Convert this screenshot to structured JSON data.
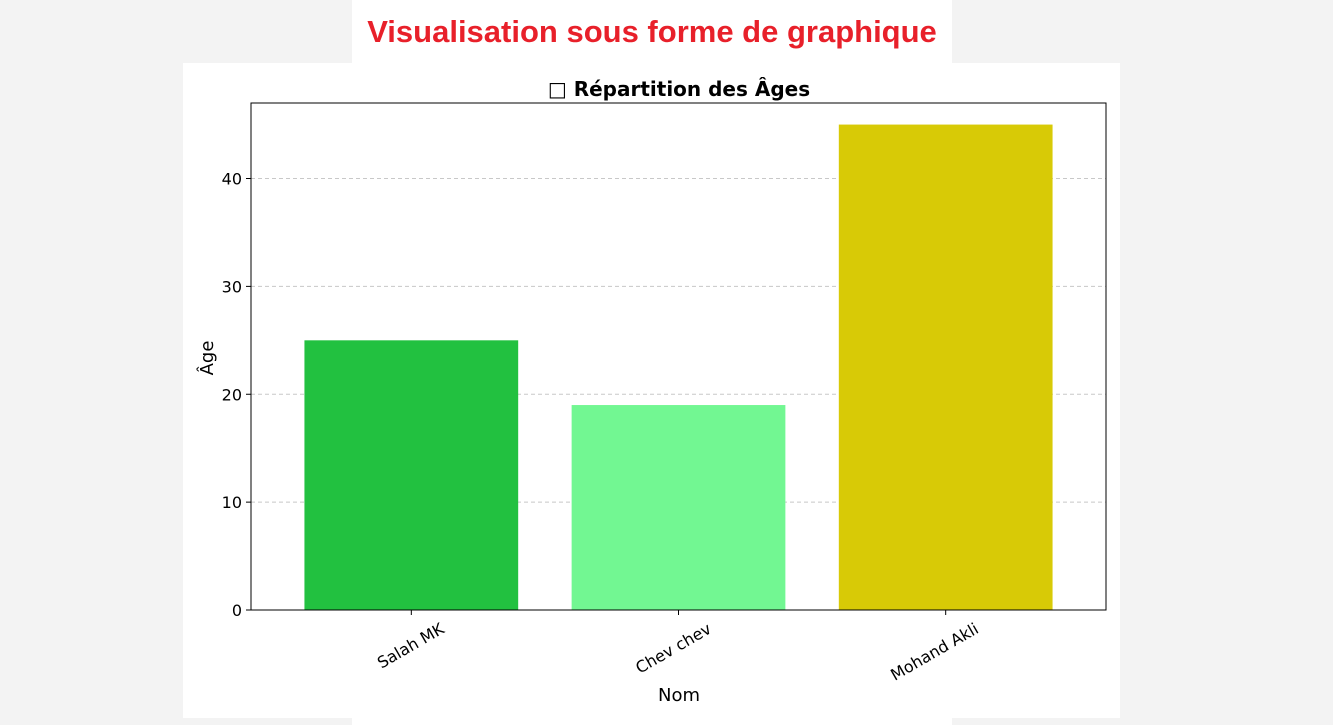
{
  "page": {
    "heading": "Visualisation sous forme de graphique"
  },
  "chart_data": {
    "type": "bar",
    "title": "□ Répartition des Âges",
    "categories": [
      "Salah MK",
      "Chev chev",
      "Mohand Akli"
    ],
    "values": [
      25,
      19,
      45
    ],
    "colors": [
      "#22c140",
      "#72f792",
      "#d8ca06"
    ],
    "xlabel": "Nom",
    "ylabel": "Âge",
    "ylim": [
      0,
      47
    ],
    "yticks": [
      0,
      10,
      20,
      30,
      40
    ],
    "grid": "y-dashed",
    "legend": "none"
  }
}
